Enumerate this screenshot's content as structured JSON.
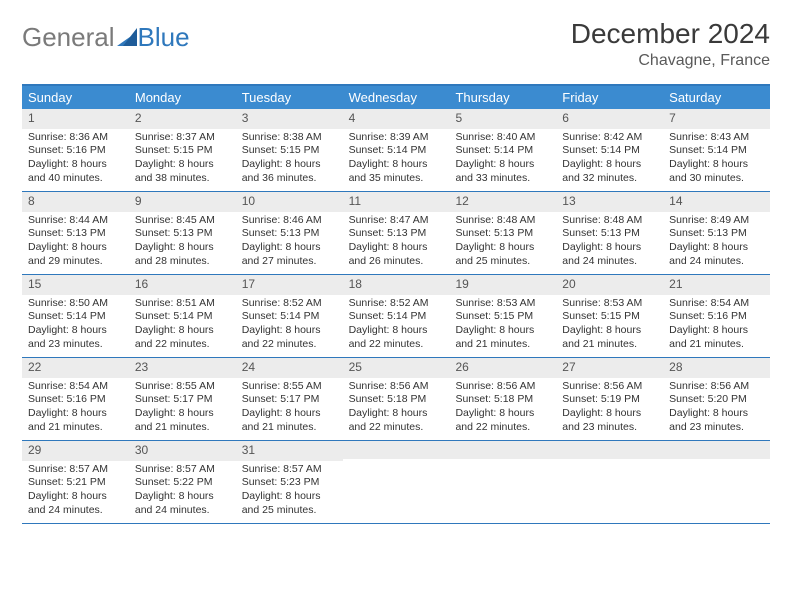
{
  "brand": {
    "part1": "General",
    "part2": "Blue"
  },
  "title": "December 2024",
  "location": "Chavagne, France",
  "colors": {
    "header_bg": "#3b8bd0",
    "border": "#2f78bc",
    "daynum_bg": "#ececec",
    "text": "#333333",
    "brand_gray": "#7a7a7a",
    "brand_blue": "#2f78bc"
  },
  "weekdays": [
    "Sunday",
    "Monday",
    "Tuesday",
    "Wednesday",
    "Thursday",
    "Friday",
    "Saturday"
  ],
  "weeks": [
    [
      {
        "n": "1",
        "sr": "Sunrise: 8:36 AM",
        "ss": "Sunset: 5:16 PM",
        "d1": "Daylight: 8 hours",
        "d2": "and 40 minutes."
      },
      {
        "n": "2",
        "sr": "Sunrise: 8:37 AM",
        "ss": "Sunset: 5:15 PM",
        "d1": "Daylight: 8 hours",
        "d2": "and 38 minutes."
      },
      {
        "n": "3",
        "sr": "Sunrise: 8:38 AM",
        "ss": "Sunset: 5:15 PM",
        "d1": "Daylight: 8 hours",
        "d2": "and 36 minutes."
      },
      {
        "n": "4",
        "sr": "Sunrise: 8:39 AM",
        "ss": "Sunset: 5:14 PM",
        "d1": "Daylight: 8 hours",
        "d2": "and 35 minutes."
      },
      {
        "n": "5",
        "sr": "Sunrise: 8:40 AM",
        "ss": "Sunset: 5:14 PM",
        "d1": "Daylight: 8 hours",
        "d2": "and 33 minutes."
      },
      {
        "n": "6",
        "sr": "Sunrise: 8:42 AM",
        "ss": "Sunset: 5:14 PM",
        "d1": "Daylight: 8 hours",
        "d2": "and 32 minutes."
      },
      {
        "n": "7",
        "sr": "Sunrise: 8:43 AM",
        "ss": "Sunset: 5:14 PM",
        "d1": "Daylight: 8 hours",
        "d2": "and 30 minutes."
      }
    ],
    [
      {
        "n": "8",
        "sr": "Sunrise: 8:44 AM",
        "ss": "Sunset: 5:13 PM",
        "d1": "Daylight: 8 hours",
        "d2": "and 29 minutes."
      },
      {
        "n": "9",
        "sr": "Sunrise: 8:45 AM",
        "ss": "Sunset: 5:13 PM",
        "d1": "Daylight: 8 hours",
        "d2": "and 28 minutes."
      },
      {
        "n": "10",
        "sr": "Sunrise: 8:46 AM",
        "ss": "Sunset: 5:13 PM",
        "d1": "Daylight: 8 hours",
        "d2": "and 27 minutes."
      },
      {
        "n": "11",
        "sr": "Sunrise: 8:47 AM",
        "ss": "Sunset: 5:13 PM",
        "d1": "Daylight: 8 hours",
        "d2": "and 26 minutes."
      },
      {
        "n": "12",
        "sr": "Sunrise: 8:48 AM",
        "ss": "Sunset: 5:13 PM",
        "d1": "Daylight: 8 hours",
        "d2": "and 25 minutes."
      },
      {
        "n": "13",
        "sr": "Sunrise: 8:48 AM",
        "ss": "Sunset: 5:13 PM",
        "d1": "Daylight: 8 hours",
        "d2": "and 24 minutes."
      },
      {
        "n": "14",
        "sr": "Sunrise: 8:49 AM",
        "ss": "Sunset: 5:13 PM",
        "d1": "Daylight: 8 hours",
        "d2": "and 24 minutes."
      }
    ],
    [
      {
        "n": "15",
        "sr": "Sunrise: 8:50 AM",
        "ss": "Sunset: 5:14 PM",
        "d1": "Daylight: 8 hours",
        "d2": "and 23 minutes."
      },
      {
        "n": "16",
        "sr": "Sunrise: 8:51 AM",
        "ss": "Sunset: 5:14 PM",
        "d1": "Daylight: 8 hours",
        "d2": "and 22 minutes."
      },
      {
        "n": "17",
        "sr": "Sunrise: 8:52 AM",
        "ss": "Sunset: 5:14 PM",
        "d1": "Daylight: 8 hours",
        "d2": "and 22 minutes."
      },
      {
        "n": "18",
        "sr": "Sunrise: 8:52 AM",
        "ss": "Sunset: 5:14 PM",
        "d1": "Daylight: 8 hours",
        "d2": "and 22 minutes."
      },
      {
        "n": "19",
        "sr": "Sunrise: 8:53 AM",
        "ss": "Sunset: 5:15 PM",
        "d1": "Daylight: 8 hours",
        "d2": "and 21 minutes."
      },
      {
        "n": "20",
        "sr": "Sunrise: 8:53 AM",
        "ss": "Sunset: 5:15 PM",
        "d1": "Daylight: 8 hours",
        "d2": "and 21 minutes."
      },
      {
        "n": "21",
        "sr": "Sunrise: 8:54 AM",
        "ss": "Sunset: 5:16 PM",
        "d1": "Daylight: 8 hours",
        "d2": "and 21 minutes."
      }
    ],
    [
      {
        "n": "22",
        "sr": "Sunrise: 8:54 AM",
        "ss": "Sunset: 5:16 PM",
        "d1": "Daylight: 8 hours",
        "d2": "and 21 minutes."
      },
      {
        "n": "23",
        "sr": "Sunrise: 8:55 AM",
        "ss": "Sunset: 5:17 PM",
        "d1": "Daylight: 8 hours",
        "d2": "and 21 minutes."
      },
      {
        "n": "24",
        "sr": "Sunrise: 8:55 AM",
        "ss": "Sunset: 5:17 PM",
        "d1": "Daylight: 8 hours",
        "d2": "and 21 minutes."
      },
      {
        "n": "25",
        "sr": "Sunrise: 8:56 AM",
        "ss": "Sunset: 5:18 PM",
        "d1": "Daylight: 8 hours",
        "d2": "and 22 minutes."
      },
      {
        "n": "26",
        "sr": "Sunrise: 8:56 AM",
        "ss": "Sunset: 5:18 PM",
        "d1": "Daylight: 8 hours",
        "d2": "and 22 minutes."
      },
      {
        "n": "27",
        "sr": "Sunrise: 8:56 AM",
        "ss": "Sunset: 5:19 PM",
        "d1": "Daylight: 8 hours",
        "d2": "and 23 minutes."
      },
      {
        "n": "28",
        "sr": "Sunrise: 8:56 AM",
        "ss": "Sunset: 5:20 PM",
        "d1": "Daylight: 8 hours",
        "d2": "and 23 minutes."
      }
    ],
    [
      {
        "n": "29",
        "sr": "Sunrise: 8:57 AM",
        "ss": "Sunset: 5:21 PM",
        "d1": "Daylight: 8 hours",
        "d2": "and 24 minutes."
      },
      {
        "n": "30",
        "sr": "Sunrise: 8:57 AM",
        "ss": "Sunset: 5:22 PM",
        "d1": "Daylight: 8 hours",
        "d2": "and 24 minutes."
      },
      {
        "n": "31",
        "sr": "Sunrise: 8:57 AM",
        "ss": "Sunset: 5:23 PM",
        "d1": "Daylight: 8 hours",
        "d2": "and 25 minutes."
      },
      {
        "n": "",
        "empty": true
      },
      {
        "n": "",
        "empty": true
      },
      {
        "n": "",
        "empty": true
      },
      {
        "n": "",
        "empty": true
      }
    ]
  ]
}
